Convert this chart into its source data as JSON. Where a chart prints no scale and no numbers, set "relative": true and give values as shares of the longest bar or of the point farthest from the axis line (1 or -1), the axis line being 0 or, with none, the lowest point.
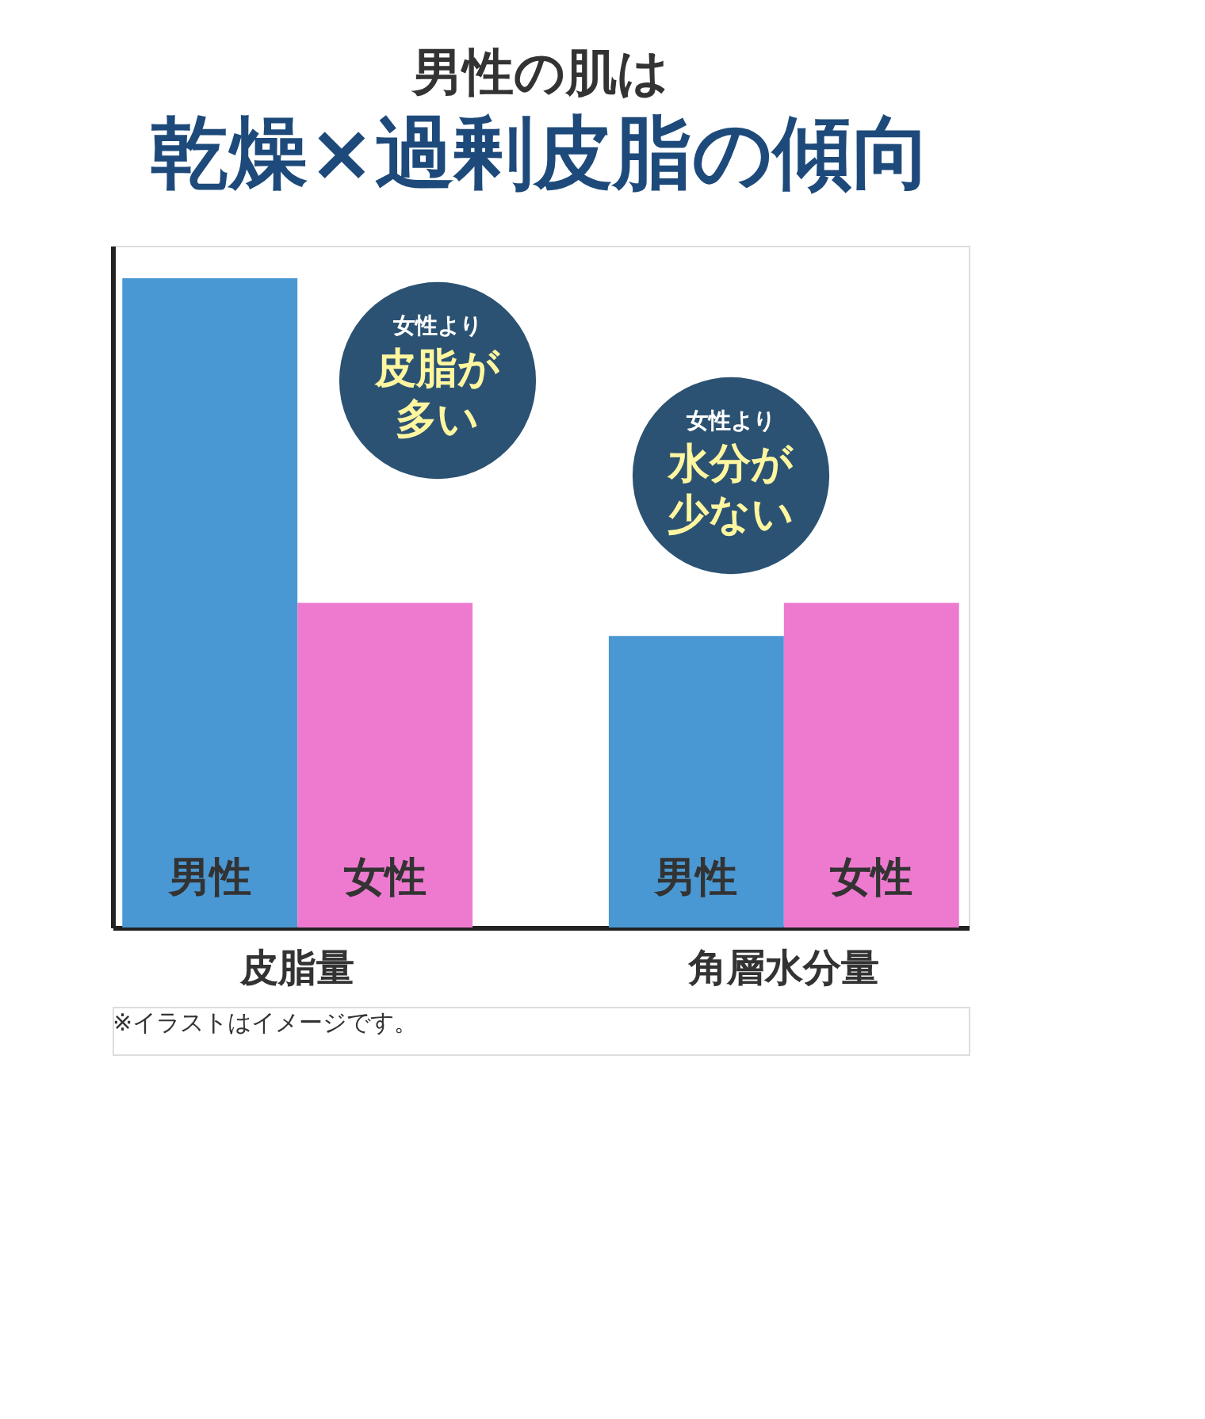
{
  "chart_data": {
    "type": "bar",
    "title": "男性の肌は",
    "subtitle": "乾燥×過剰皮脂の傾向",
    "categories": [
      "皮脂量",
      "角層水分量"
    ],
    "series": [
      {
        "name": "男性",
        "color": "#4a98d3",
        "values": [
          1,
          0.449
        ]
      },
      {
        "name": "女性",
        "color": "#ee7ad0",
        "values": [
          0.5,
          0.5
        ]
      }
    ],
    "relative": true,
    "grid": false,
    "annotations": [
      "女性より",
      "皮脂が多い",
      "女性より",
      "水分が少ない",
      "※イラストはイメージです。"
    ]
  }
}
